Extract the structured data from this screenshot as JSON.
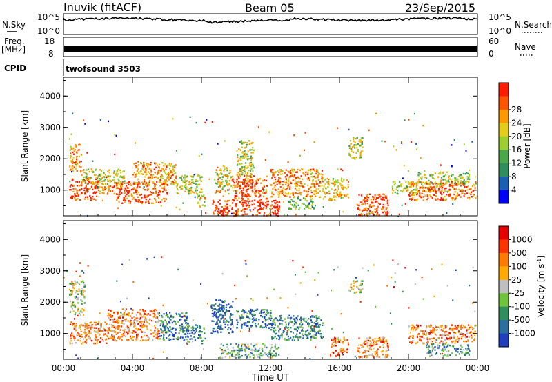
{
  "header": {
    "station": "Inuvik (fitACF)",
    "beam": "Beam 05",
    "date": "23/Sep/2015"
  },
  "top_panels": {
    "nsky_label": "N.Sky",
    "nsky_ticks": [
      "10^5",
      "10^0"
    ],
    "nsearch_label": "N.Search",
    "nsearch_ticks": [
      "10^5",
      "10^0"
    ],
    "freq_label": "Freq.",
    "freq_unit": "[MHz]",
    "freq_ticks": [
      "18",
      "8"
    ],
    "nave_label": "Nave",
    "nave_ticks": [
      "60",
      "0"
    ],
    "cpid_label": "CPID",
    "cpid_value": "twofsound 3503"
  },
  "chart_data": [
    {
      "type": "heatmap",
      "ylabel": "Slant Range [km]",
      "xlabel": "",
      "ylim": [
        180,
        4600
      ],
      "y_ticks": [
        "1000",
        "2000",
        "3000",
        "4000"
      ],
      "x_tick_labels": [
        "00:00",
        "04:00",
        "08:00",
        "12:00",
        "16:00",
        "20:00",
        "00:00"
      ],
      "x_hours": [
        0,
        4,
        8,
        12,
        16,
        20,
        24
      ],
      "colorbar": {
        "label": "Power [dB]",
        "ticks": [
          "4",
          "8",
          "12",
          "16",
          "20",
          "24",
          "28"
        ],
        "colors": [
          "#0000ff",
          "#1a5fb4",
          "#2f8f5a",
          "#4aa84a",
          "#9ccf2f",
          "#e6cc1a",
          "#ff9900",
          "#ff5500",
          "#ff1a00"
        ]
      },
      "series": [
        {
          "t0": 0.3,
          "t1": 1.0,
          "r0": 1600,
          "r1": 2500,
          "level": 0.75
        },
        {
          "t0": 0.3,
          "t1": 2.0,
          "r0": 700,
          "r1": 1400,
          "level": 0.9
        },
        {
          "t0": 1.0,
          "t1": 3.5,
          "r0": 1200,
          "r1": 1700,
          "level": 0.55
        },
        {
          "t0": 2.0,
          "t1": 3.0,
          "r0": 900,
          "r1": 1200,
          "level": 0.7
        },
        {
          "t0": 3.0,
          "t1": 6.0,
          "r0": 600,
          "r1": 1300,
          "level": 0.85
        },
        {
          "t0": 4.0,
          "t1": 6.5,
          "r0": 1200,
          "r1": 1900,
          "level": 0.7
        },
        {
          "t0": 6.5,
          "t1": 8.0,
          "r0": 900,
          "r1": 1500,
          "level": 0.55
        },
        {
          "t0": 7.7,
          "t1": 8.2,
          "r0": 500,
          "r1": 900,
          "level": 0.6
        },
        {
          "t0": 8.6,
          "t1": 12.5,
          "r0": 200,
          "r1": 700,
          "level": 0.95
        },
        {
          "t0": 8.7,
          "t1": 9.7,
          "r0": 900,
          "r1": 1800,
          "level": 0.6
        },
        {
          "t0": 9.7,
          "t1": 11.8,
          "r0": 700,
          "r1": 1500,
          "level": 0.85
        },
        {
          "t0": 10.0,
          "t1": 11.0,
          "r0": 1500,
          "r1": 2600,
          "level": 0.55
        },
        {
          "t0": 12.0,
          "t1": 15.0,
          "r0": 800,
          "r1": 1700,
          "level": 0.75
        },
        {
          "t0": 13.0,
          "t1": 14.5,
          "r0": 400,
          "r1": 800,
          "level": 0.45
        },
        {
          "t0": 15.0,
          "t1": 16.5,
          "r0": 700,
          "r1": 1400,
          "level": 0.65
        },
        {
          "t0": 16.5,
          "t1": 17.3,
          "r0": 2000,
          "r1": 2700,
          "level": 0.55
        },
        {
          "t0": 17.0,
          "t1": 18.8,
          "r0": 200,
          "r1": 900,
          "level": 0.9
        },
        {
          "t0": 19.0,
          "t1": 20.5,
          "r0": 900,
          "r1": 1300,
          "level": 0.55
        },
        {
          "t0": 20.0,
          "t1": 23.9,
          "r0": 700,
          "r1": 1300,
          "level": 0.8
        },
        {
          "t0": 20.5,
          "t1": 23.5,
          "r0": 1200,
          "r1": 1600,
          "level": 0.5
        }
      ]
    },
    {
      "type": "heatmap",
      "ylabel": "Slant Range [km]",
      "xlabel": "Time UT",
      "ylim": [
        180,
        4600
      ],
      "y_ticks": [
        "1000",
        "2000",
        "3000",
        "4000"
      ],
      "x_tick_labels": [
        "00:00",
        "04:00",
        "08:00",
        "12:00",
        "16:00",
        "20:00",
        "00:00"
      ],
      "x_hours": [
        0,
        4,
        8,
        12,
        16,
        20,
        24
      ],
      "colorbar": {
        "label": "Velocity [m s^-1]",
        "ticks": [
          "1000",
          "500",
          "100",
          "25",
          "-25",
          "-100",
          "-500",
          "-1000"
        ],
        "colors": [
          "#1f3fbf",
          "#2a6fa0",
          "#2f8f5a",
          "#6ec43a",
          "#bfbfbf",
          "#ffaa00",
          "#ff7a00",
          "#ff3300",
          "#e60000"
        ]
      },
      "series": [
        {
          "t0": 0.3,
          "t1": 1.2,
          "r0": 1600,
          "r1": 2700,
          "level": 0.45
        },
        {
          "t0": 0.3,
          "t1": 2.5,
          "r0": 700,
          "r1": 1400,
          "level": 0.7
        },
        {
          "t0": 2.5,
          "t1": 5.5,
          "r0": 800,
          "r1": 1800,
          "level": 0.7
        },
        {
          "t0": 5.5,
          "t1": 7.2,
          "r0": 800,
          "r1": 1700,
          "level": 0.2
        },
        {
          "t0": 7.0,
          "t1": 8.2,
          "r0": 700,
          "r1": 1300,
          "level": 0.25
        },
        {
          "t0": 8.5,
          "t1": 9.8,
          "r0": 1000,
          "r1": 2100,
          "level": 0.1
        },
        {
          "t0": 9.0,
          "t1": 12.5,
          "r0": 250,
          "r1": 700,
          "level": 0.35
        },
        {
          "t0": 10.0,
          "t1": 12.0,
          "r0": 1200,
          "r1": 1800,
          "level": 0.2
        },
        {
          "t0": 12.0,
          "t1": 15.0,
          "r0": 800,
          "r1": 1600,
          "level": 0.25
        },
        {
          "t0": 15.5,
          "t1": 16.5,
          "r0": 300,
          "r1": 900,
          "level": 0.75
        },
        {
          "t0": 16.5,
          "t1": 17.3,
          "r0": 2300,
          "r1": 2700,
          "level": 0.45
        },
        {
          "t0": 17.0,
          "t1": 18.8,
          "r0": 250,
          "r1": 900,
          "level": 0.7
        },
        {
          "t0": 20.0,
          "t1": 23.9,
          "r0": 700,
          "r1": 1300,
          "level": 0.7
        },
        {
          "t0": 21.0,
          "t1": 23.5,
          "r0": 300,
          "r1": 700,
          "level": 0.3
        }
      ]
    }
  ]
}
